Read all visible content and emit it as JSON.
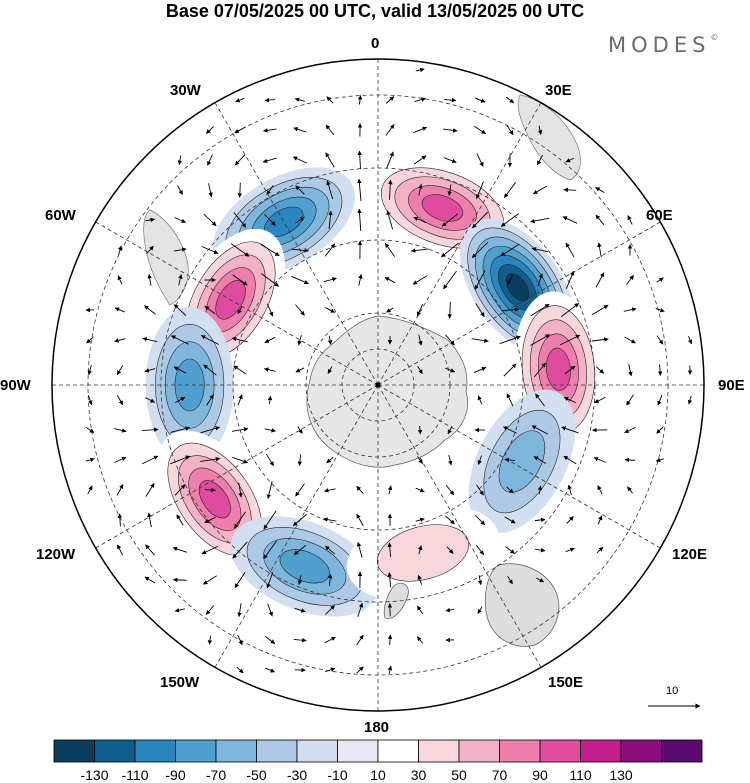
{
  "title": "Base 07/05/2025 00 UTC, valid 13/05/2025 00 UTC",
  "brand": "MODES",
  "brand_mark": "©",
  "longitude_labels": {
    "lon_0": "0",
    "lon_30e": "30E",
    "lon_60e": "60E",
    "lon_90e": "90E",
    "lon_120e": "120E",
    "lon_150e": "150E",
    "lon_180": "180",
    "lon_150w": "150W",
    "lon_120w": "120W",
    "lon_90w": "90W",
    "lon_60w": "60W",
    "lon_30w": "30W"
  },
  "reference_vector": {
    "label": "10"
  },
  "colorbar": {
    "colors": [
      "#0b3d5c",
      "#0f5f8e",
      "#2a86bf",
      "#4f9fcf",
      "#7fb6dc",
      "#adc9e6",
      "#d2dff0",
      "#e8e8f3",
      "#ffffff",
      "#f7d6dc",
      "#f4b0c4",
      "#ee7eab",
      "#df4c9f",
      "#c31d8e",
      "#8c0e7a",
      "#5a0a6e"
    ],
    "labels": [
      "-130",
      "-110",
      "-90",
      "-70",
      "-50",
      "-30",
      "-10",
      "10",
      "30",
      "50",
      "70",
      "90",
      "110",
      "130"
    ]
  },
  "anomaly_centers": [
    {
      "lon": -30,
      "colat_deg": 52,
      "value": -90
    },
    {
      "lon": 20,
      "colat_deg": 52,
      "value": 90
    },
    {
      "lon": 55,
      "colat_deg": 47,
      "value": -130
    },
    {
      "lon": -60,
      "colat_deg": 47,
      "value": 90
    },
    {
      "lon": 85,
      "colat_deg": 50,
      "value": 90
    },
    {
      "lon": -90,
      "colat_deg": 52,
      "value": -70
    },
    {
      "lon": -125,
      "colat_deg": 55,
      "value": 90
    },
    {
      "lon": -158,
      "colat_deg": 54,
      "value": -70
    },
    {
      "lon": 118,
      "colat_deg": 45,
      "value": -50
    },
    {
      "lon": 165,
      "colat_deg": 48,
      "value": 30
    }
  ]
}
